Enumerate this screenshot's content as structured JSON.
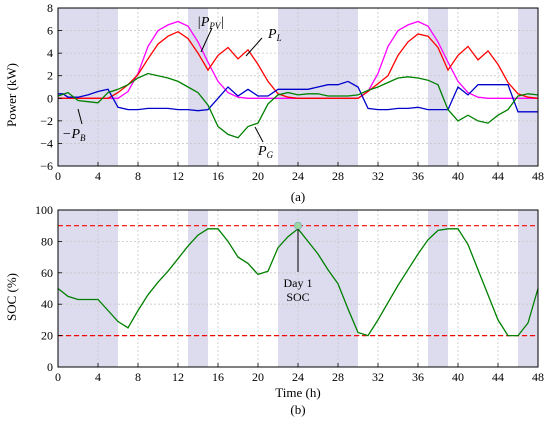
{
  "chart_data": [
    {
      "type": "line",
      "panel_label": "(a)",
      "xlabel": "",
      "ylabel": "Power (kW)",
      "xlim": [
        0,
        48
      ],
      "ylim": [
        -6,
        8
      ],
      "xticks": [
        "0",
        "4",
        "8",
        "12",
        "16",
        "20",
        "24",
        "28",
        "32",
        "36",
        "40",
        "44",
        "48"
      ],
      "yticks": [
        "−6",
        "−4",
        "−2",
        "0",
        "2",
        "4",
        "6",
        "8"
      ],
      "grid": true,
      "shaded_intervals": [
        [
          0,
          6
        ],
        [
          13,
          15
        ],
        [
          22,
          30
        ],
        [
          37,
          39
        ],
        [
          46,
          48
        ]
      ],
      "annotations": [
        {
          "text": "|P",
          "sub": "PV",
          "suffix": "|"
        },
        {
          "text": "P",
          "sub": "L",
          "suffix": ""
        },
        {
          "text": "−P",
          "sub": "B",
          "suffix": ""
        },
        {
          "text": "P",
          "sub": "G",
          "suffix": ""
        }
      ],
      "series": [
        {
          "key": "ppv",
          "color": "#ff00ff",
          "x": [
            0,
            6,
            7,
            8,
            9,
            10,
            11,
            12,
            13,
            14,
            15,
            16,
            17,
            18,
            19,
            20,
            21,
            22,
            30,
            31,
            32,
            33,
            34,
            35,
            36,
            37,
            38,
            39,
            40,
            41,
            42,
            43,
            44,
            45,
            46,
            48
          ],
          "y": [
            0,
            0,
            0.6,
            2.2,
            4.6,
            6.0,
            6.5,
            6.8,
            6.4,
            5.0,
            3.2,
            1.5,
            0.5,
            0.1,
            0,
            0,
            0,
            0,
            0,
            0.6,
            2.2,
            4.6,
            6.0,
            6.5,
            6.8,
            6.4,
            5.0,
            3.2,
            1.5,
            0.5,
            0.1,
            0,
            0,
            0,
            0,
            0
          ]
        },
        {
          "key": "pl",
          "color": "#ff0000",
          "x": [
            0,
            5,
            6,
            7,
            8,
            9,
            10,
            11,
            12,
            13,
            14,
            15,
            16,
            17,
            18,
            19,
            20,
            21,
            22,
            23,
            24,
            30,
            31,
            32,
            33,
            34,
            35,
            36,
            37,
            38,
            39,
            40,
            41,
            42,
            43,
            44,
            45,
            46,
            47,
            48
          ],
          "y": [
            0,
            0,
            0.5,
            1.2,
            2.1,
            3.5,
            4.8,
            5.5,
            5.9,
            5.3,
            4.0,
            2.5,
            3.8,
            4.5,
            3.5,
            4.3,
            3.0,
            1.5,
            0.4,
            0.1,
            0,
            0,
            0.6,
            1.3,
            2.0,
            3.8,
            5.0,
            5.7,
            5.5,
            4.5,
            2.5,
            3.8,
            4.6,
            3.4,
            4.2,
            3.0,
            1.4,
            0.4,
            0.1,
            0
          ]
        },
        {
          "key": "pb",
          "color": "#0000cc",
          "x": [
            0,
            0.5,
            1,
            2,
            3,
            4,
            5,
            6,
            7,
            8,
            9,
            10,
            11,
            12,
            13,
            14,
            15,
            16,
            17,
            18,
            19,
            20,
            21,
            22,
            23,
            24,
            25,
            26,
            27,
            28,
            29,
            30,
            31,
            32,
            33,
            34,
            35,
            36,
            37,
            38,
            39,
            40,
            41,
            42,
            43,
            44,
            45,
            46,
            47,
            48
          ],
          "y": [
            0.4,
            0.4,
            0.1,
            0.1,
            0.3,
            0.6,
            0.8,
            -0.8,
            -1.0,
            -1.0,
            -0.9,
            -0.9,
            -0.9,
            -1.0,
            -1.0,
            -1.1,
            -1.0,
            0,
            1.0,
            0.2,
            0.8,
            0.2,
            0.2,
            0.8,
            0.8,
            0.8,
            0.8,
            1.0,
            1.2,
            1.2,
            1.5,
            1.0,
            -0.9,
            -1.0,
            -1.0,
            -0.9,
            -0.9,
            -0.8,
            -1.0,
            -1.0,
            -1.0,
            1.0,
            0.3,
            1.2,
            1.2,
            1.2,
            1.2,
            -1.2,
            -1.2,
            -1.2
          ]
        },
        {
          "key": "pg",
          "color": "#008000",
          "x": [
            0,
            1,
            2,
            3,
            4,
            5,
            6,
            7,
            8,
            9,
            10,
            11,
            12,
            13,
            14,
            15,
            16,
            17,
            18,
            19,
            20,
            21,
            22,
            23,
            24,
            25,
            26,
            27,
            28,
            29,
            30,
            31,
            32,
            33,
            34,
            35,
            36,
            37,
            38,
            39,
            40,
            41,
            42,
            43,
            44,
            45,
            46,
            47,
            48
          ],
          "y": [
            0.2,
            0.5,
            -0.2,
            -0.3,
            -0.4,
            0.5,
            0.8,
            1.2,
            1.8,
            2.2,
            2.0,
            1.8,
            1.5,
            1.0,
            0.5,
            -0.6,
            -2.5,
            -3.2,
            -3.5,
            -2.5,
            -2.2,
            -0.5,
            0.3,
            0.5,
            0.3,
            0.4,
            0.4,
            0.2,
            0.2,
            0.2,
            0.3,
            0.7,
            1.0,
            1.4,
            1.8,
            1.9,
            1.8,
            1.6,
            1.2,
            -1.0,
            -2.0,
            -1.5,
            -2.0,
            -2.2,
            -1.5,
            -1.0,
            0.2,
            0.4,
            0.3
          ]
        }
      ]
    },
    {
      "type": "line",
      "panel_label": "(b)",
      "xlabel": "Time (h)",
      "ylabel": "SOC (%)",
      "xlim": [
        0,
        48
      ],
      "ylim": [
        0,
        100
      ],
      "xticks": [
        "0",
        "4",
        "8",
        "12",
        "16",
        "20",
        "24",
        "28",
        "32",
        "36",
        "40",
        "44",
        "48"
      ],
      "yticks": [
        "0",
        "20",
        "40",
        "60",
        "80",
        "100"
      ],
      "grid": true,
      "shaded_intervals": [
        [
          0,
          6
        ],
        [
          13,
          15
        ],
        [
          22,
          30
        ],
        [
          37,
          39
        ],
        [
          46,
          48
        ]
      ],
      "limit_lines": [
        90,
        20
      ],
      "limit_color": "#ff0000",
      "marker": {
        "x": 24,
        "y": 90,
        "text_lines": [
          "Day 1",
          "SOC"
        ]
      },
      "series": [
        {
          "key": "soc",
          "color": "#008000",
          "x": [
            0,
            1,
            2,
            3,
            4,
            5,
            6,
            7,
            8,
            9,
            10,
            11,
            12,
            13,
            14,
            15,
            16,
            17,
            18,
            19,
            20,
            21,
            22,
            23,
            24,
            25,
            26,
            27,
            28,
            29,
            30,
            31,
            32,
            33,
            34,
            35,
            36,
            37,
            38,
            39,
            40,
            41,
            42,
            43,
            44,
            45,
            46,
            47,
            48
          ],
          "y": [
            50,
            45,
            43,
            43,
            43,
            36,
            29,
            25,
            36,
            46,
            54,
            61,
            69,
            77,
            84,
            88,
            88,
            80,
            70,
            66,
            59,
            61,
            76,
            83,
            88,
            80,
            72,
            62,
            53,
            37,
            22,
            20,
            30,
            41,
            52,
            62,
            72,
            81,
            87,
            88,
            88,
            78,
            62,
            46,
            30,
            20,
            20,
            28,
            50
          ]
        }
      ]
    }
  ]
}
